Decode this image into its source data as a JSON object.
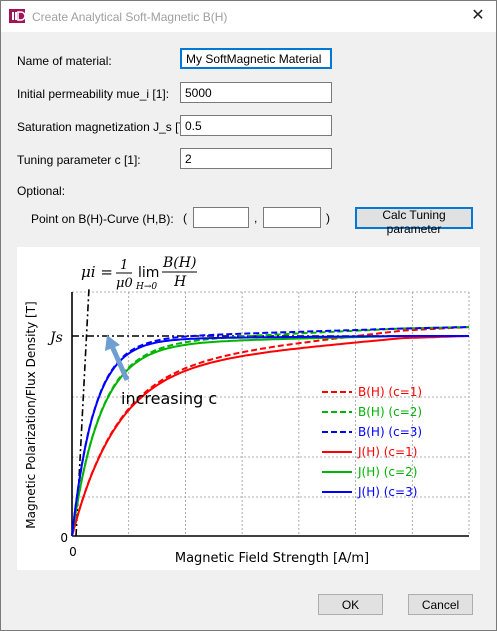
{
  "window": {
    "title": "Create Analytical Soft-Magnetic B(H)",
    "close_glyph": "✕"
  },
  "form": {
    "name_label": "Name of material:",
    "name_value": "My SoftMagnetic Material",
    "perm_label": "Initial permeability mue_i [1]:",
    "perm_value": "5000",
    "sat_label": "Saturation magnetization J_s [T]:",
    "sat_value": "0.5",
    "tune_label": "Tuning parameter c [1]:",
    "tune_value": "2",
    "optional_label": "Optional:",
    "point_label": "Point on B(H)-Curve (H,B):",
    "paren_open": "(",
    "comma": ",",
    "paren_close": ")",
    "point_h_value": "",
    "point_b_value": "",
    "calc_button": "Calc Tuning parameter"
  },
  "buttons": {
    "ok": "OK",
    "cancel": "Cancel"
  },
  "chart_data": {
    "type": "line",
    "formula": {
      "lhs": "μi =",
      "num": "1",
      "den": "μ0",
      "lim": "lim",
      "limsub": "H→0",
      "fnum": "B(H)",
      "fden": "H"
    },
    "xlabel": "Magnetic Field Strength [A/m]",
    "ylabel": "Magnetic Polarization/Flux Density [T]",
    "x_tick_label": "0",
    "y_tick_labels": [
      "0",
      "Js"
    ],
    "annotation": "increasing c",
    "grid": true,
    "legend_position": "right-middle",
    "series": [
      {
        "name": "B(H) (c=1)",
        "color": "#ff0000",
        "dashed": true
      },
      {
        "name": "B(H) (c=2)",
        "color": "#00b400",
        "dashed": true
      },
      {
        "name": "B(H) (c=3)",
        "color": "#0000ff",
        "dashed": true
      },
      {
        "name": "J(H) (c=1)",
        "color": "#ff0000",
        "dashed": false
      },
      {
        "name": "J(H) (c=2)",
        "color": "#00b400",
        "dashed": false
      },
      {
        "name": "J(H) (c=3)",
        "color": "#0000ff",
        "dashed": false
      }
    ]
  }
}
